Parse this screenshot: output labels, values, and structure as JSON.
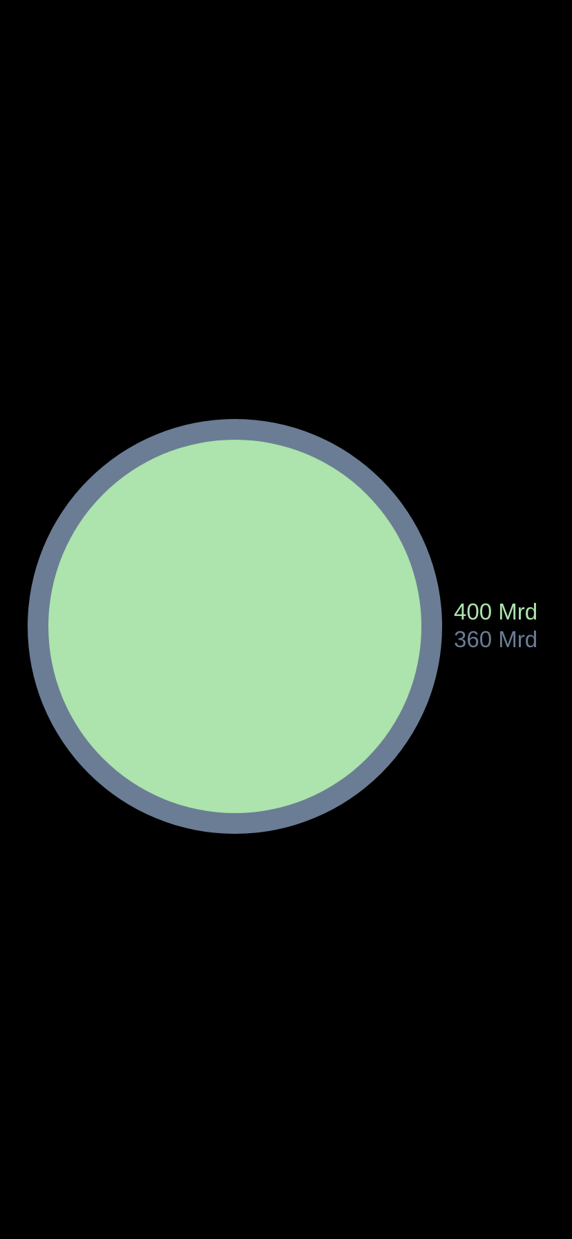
{
  "colors": {
    "background": "#000000",
    "primary": "#ade3ac",
    "secondary": "#6b7d95"
  },
  "comparison": {
    "primary": {
      "label": "400 Mrd",
      "value": 400
    },
    "secondary": {
      "label": "360 Mrd",
      "value": 360
    }
  }
}
